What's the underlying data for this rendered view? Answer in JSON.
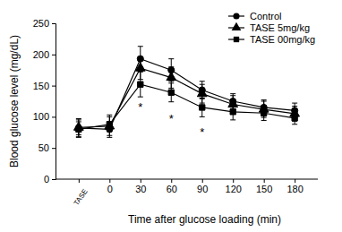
{
  "chart_data": {
    "type": "line",
    "x_label": "Time after glucose loading (min)",
    "y_label": "Blood glucose level (mg/dL)",
    "categories": [
      "TASE",
      "0",
      "30",
      "60",
      "90",
      "120",
      "150",
      "180"
    ],
    "series": [
      {
        "name": "Control",
        "color": "#000000",
        "marker": "circle",
        "values": [
          82,
          80,
          193,
          175,
          143,
          125,
          115,
          110
        ],
        "errors": [
          15,
          10,
          20,
          18,
          14,
          12,
          12,
          12
        ]
      },
      {
        "name": "TASE 5mg/kg",
        "color": "#000000",
        "marker": "triangle",
        "values": [
          83,
          85,
          178,
          163,
          137,
          120,
          112,
          105
        ],
        "errors": [
          12,
          18,
          18,
          17,
          15,
          14,
          13,
          12
        ]
      },
      {
        "name": "TASE 00mg/kg",
        "color": "#000000",
        "marker": "square",
        "values": [
          80,
          88,
          152,
          139,
          115,
          108,
          106,
          98
        ],
        "errors": [
          12,
          12,
          20,
          15,
          15,
          13,
          12,
          10
        ]
      }
    ],
    "annotations": [
      {
        "text": "*",
        "x": "30",
        "y": 122
      },
      {
        "text": "*",
        "x": "60",
        "y": 104
      },
      {
        "text": "*",
        "x": "90",
        "y": 82
      }
    ],
    "ylim": [
      0,
      250
    ],
    "yticks": [
      0,
      50,
      100,
      150,
      200,
      250
    ],
    "legend": "upper right",
    "grid": false
  }
}
